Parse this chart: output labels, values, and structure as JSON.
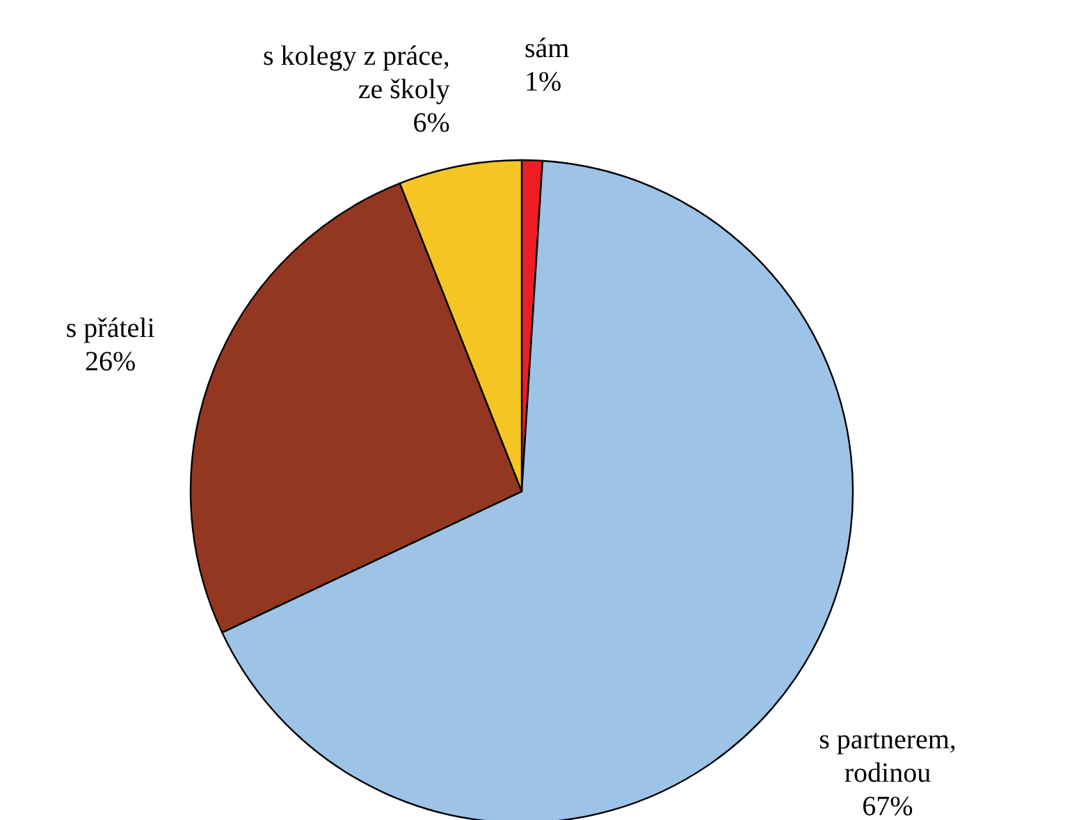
{
  "chart_data": {
    "type": "pie",
    "categories": [
      "sám",
      "s partnerem, rodinou",
      "s přáteli",
      "s kolegy z práce, ze školy"
    ],
    "values": [
      1,
      67,
      26,
      6
    ],
    "value_labels": [
      "1%",
      "67%",
      "26%",
      "6%"
    ],
    "colors": [
      "#ee1c24",
      "#9dc3e6",
      "#943720",
      "#f5c623"
    ]
  }
}
